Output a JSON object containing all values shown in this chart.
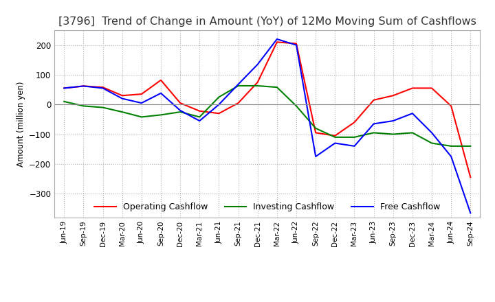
{
  "title": "[3796]  Trend of Change in Amount (YoY) of 12Mo Moving Sum of Cashflows",
  "ylabel": "Amount (million yen)",
  "ylim": [
    -380,
    250
  ],
  "yticks": [
    -300,
    -200,
    -100,
    0,
    100,
    200
  ],
  "x_labels": [
    "Jun-19",
    "Sep-19",
    "Dec-19",
    "Mar-20",
    "Jun-20",
    "Sep-20",
    "Dec-20",
    "Mar-21",
    "Jun-21",
    "Sep-21",
    "Dec-21",
    "Mar-22",
    "Jun-22",
    "Sep-22",
    "Dec-22",
    "Mar-23",
    "Jun-23",
    "Sep-23",
    "Dec-23",
    "Mar-24",
    "Jun-24",
    "Sep-24"
  ],
  "operating": [
    55,
    62,
    58,
    30,
    35,
    82,
    5,
    -22,
    -30,
    5,
    75,
    210,
    205,
    -95,
    -105,
    -60,
    15,
    30,
    55,
    55,
    -5,
    -245
  ],
  "investing": [
    10,
    -5,
    -10,
    -25,
    -42,
    -35,
    -25,
    -42,
    25,
    63,
    63,
    58,
    -5,
    -80,
    -110,
    -110,
    -95,
    -100,
    -95,
    -130,
    -140,
    -140
  ],
  "free": [
    55,
    62,
    55,
    20,
    5,
    38,
    -20,
    -55,
    0,
    68,
    135,
    220,
    200,
    -175,
    -130,
    -140,
    -65,
    -55,
    -30,
    -95,
    -175,
    -365
  ],
  "operating_color": "#ff0000",
  "investing_color": "#008000",
  "free_color": "#0000ff",
  "background_color": "#ffffff",
  "grid_color": "#b0b0b0",
  "title_fontsize": 11.5,
  "legend_labels": [
    "Operating Cashflow",
    "Investing Cashflow",
    "Free Cashflow"
  ]
}
